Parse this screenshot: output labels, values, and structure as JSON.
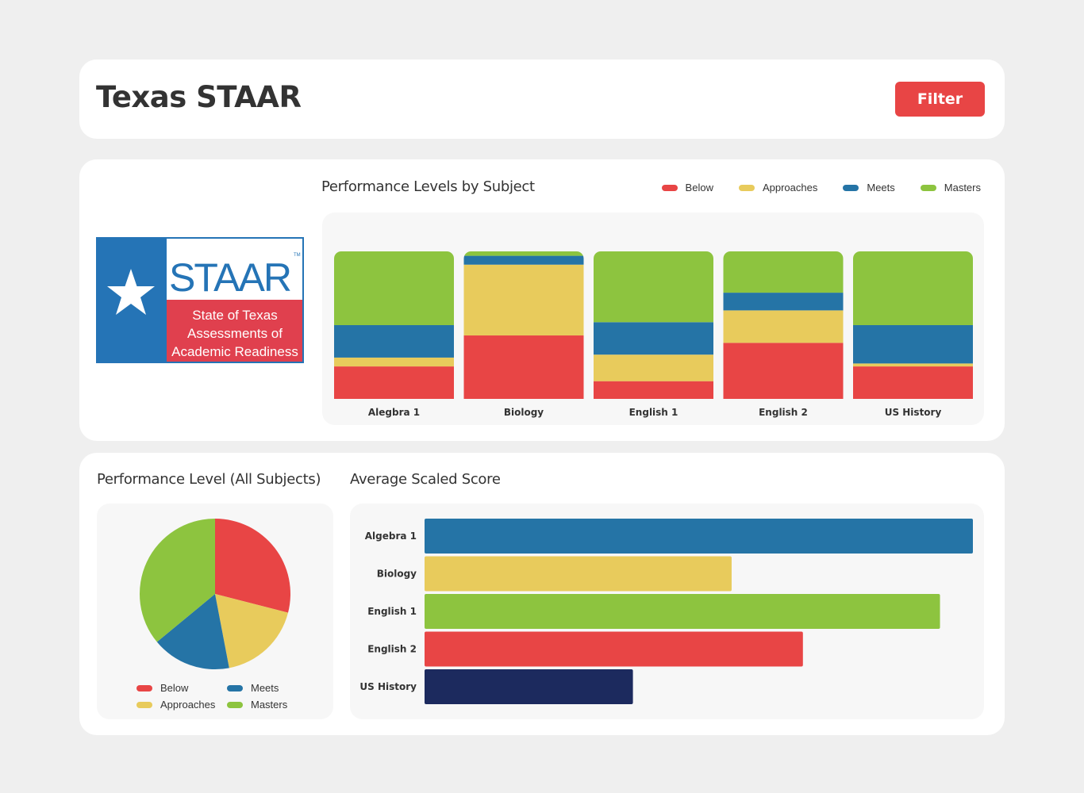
{
  "header": {
    "title": "Texas STAAR",
    "filter_label": "Filter"
  },
  "colors": {
    "below": "#e84545",
    "approaches": "#e8cb5c",
    "meets": "#2574a6",
    "masters": "#8dc43f",
    "navy": "#1c2a5e",
    "filter": "#e84545"
  },
  "logo": {
    "word": "STAAR",
    "tm": "TM",
    "lines": [
      "State of Texas",
      "Assessments of",
      "Academic Readiness"
    ]
  },
  "stacked_chart": {
    "title": "Performance Levels by Subject",
    "legend": [
      "Below",
      "Approaches",
      "Meets",
      "Masters"
    ]
  },
  "pie_chart": {
    "title": "Performance Level (All Subjects)",
    "legend": [
      "Below",
      "Meets",
      "Approaches",
      "Masters"
    ]
  },
  "hbar_chart": {
    "title": "Average Scaled Score"
  },
  "chart_data": [
    {
      "type": "bar",
      "stacked": true,
      "title": "Performance Levels by Subject",
      "categories": [
        "Alegbra 1",
        "Biology",
        "English 1",
        "English 2",
        "US History"
      ],
      "series": [
        {
          "name": "Below",
          "values": [
            22,
            43,
            12,
            38,
            22
          ]
        },
        {
          "name": "Approaches",
          "values": [
            6,
            48,
            18,
            22,
            2
          ]
        },
        {
          "name": "Meets",
          "values": [
            22,
            6,
            22,
            12,
            26
          ]
        },
        {
          "name": "Masters",
          "values": [
            50,
            4,
            48,
            28,
            50
          ]
        }
      ],
      "ylim": [
        0,
        100
      ],
      "grid": false,
      "legend_position": "top-right"
    },
    {
      "type": "pie",
      "title": "Performance Level (All Subjects)",
      "labels": [
        "Below",
        "Approaches",
        "Meets",
        "Masters"
      ],
      "values": [
        29,
        18,
        17,
        36
      ],
      "legend_position": "bottom"
    },
    {
      "type": "bar",
      "orientation": "horizontal",
      "title": "Average Scaled Score",
      "categories": [
        "Algebra 1",
        "Biology",
        "English 1",
        "English 2",
        "US History"
      ],
      "values": [
        100,
        56,
        94,
        69,
        38
      ],
      "colors": [
        "#2574a6",
        "#e8cb5c",
        "#8dc43f",
        "#e84545",
        "#1c2a5e"
      ],
      "grid": false
    }
  ]
}
